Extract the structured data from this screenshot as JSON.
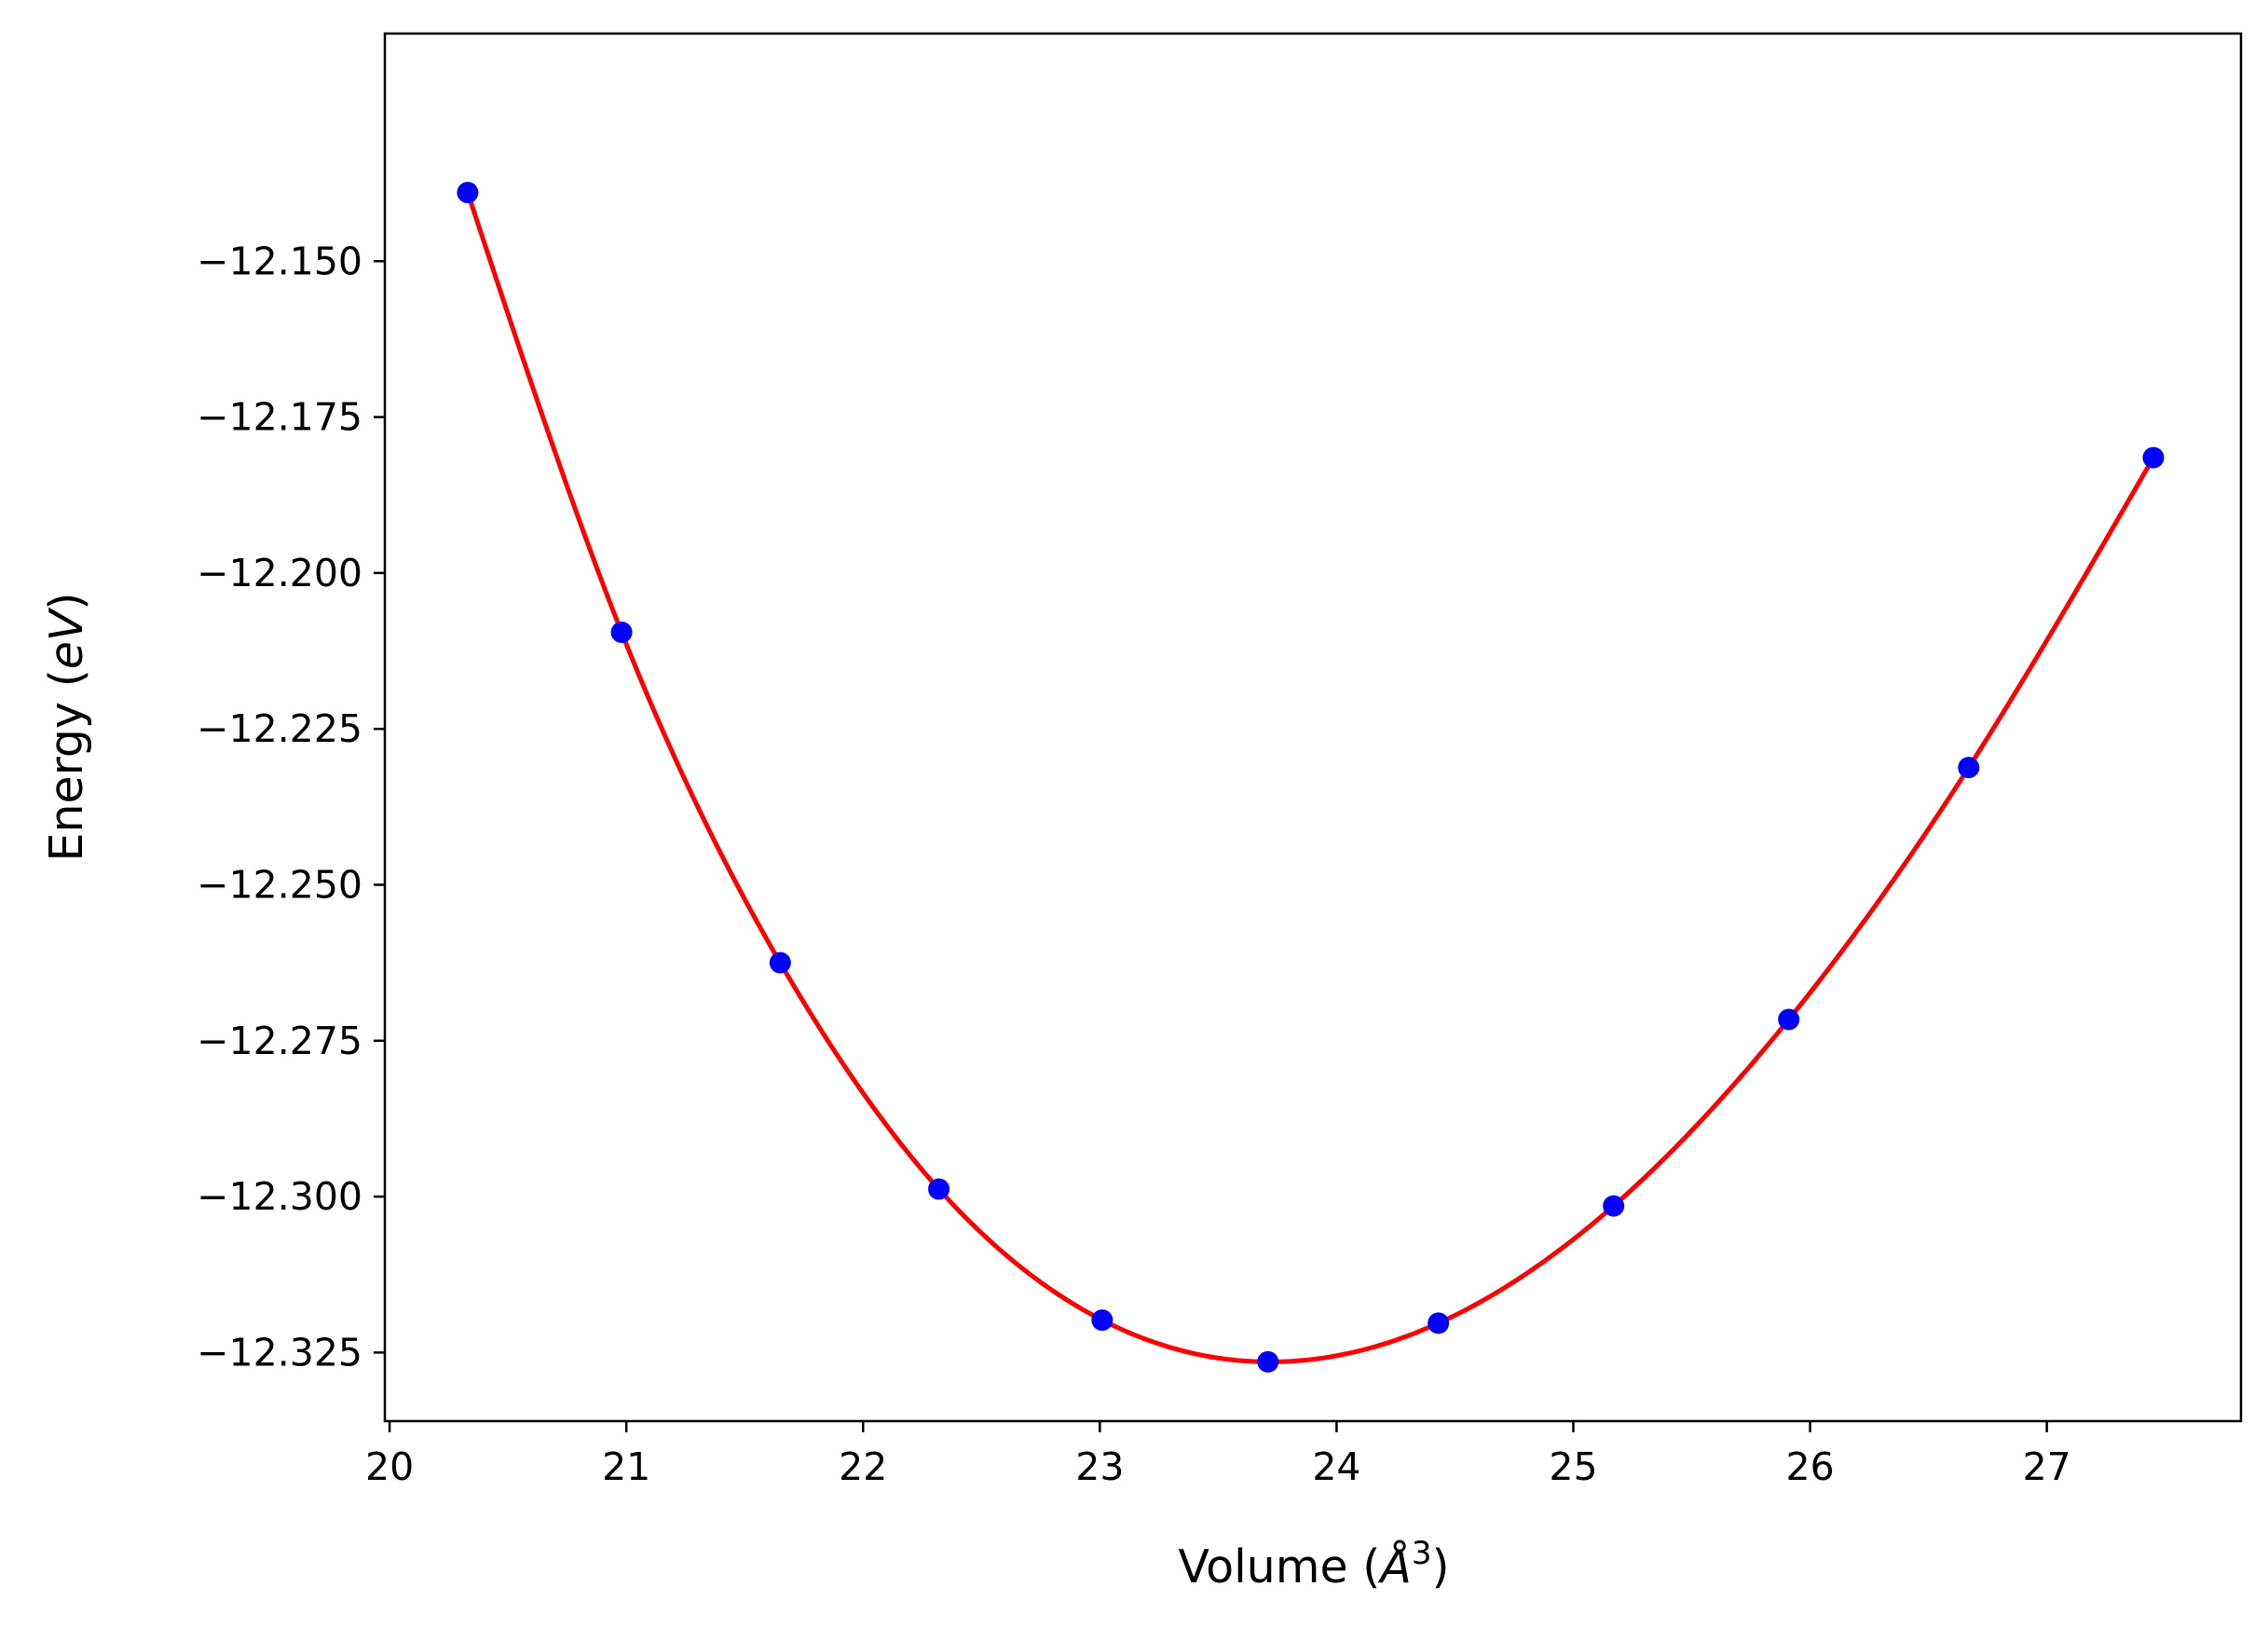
{
  "chart_data": {
    "type": "scatter",
    "title": "",
    "xlabel": {
      "prefix": "Volume (",
      "symbol": "Å",
      "exponent": "3",
      "suffix": ")"
    },
    "ylabel": {
      "prefix": "Energy (",
      "unit": "eV",
      "suffix": ")"
    },
    "xlim": [
      19.98,
      27.82
    ],
    "ylim": [
      -12.336,
      -12.1135
    ],
    "xticks": [
      20,
      21,
      22,
      23,
      24,
      25,
      26,
      27
    ],
    "xtick_labels": [
      "20",
      "21",
      "22",
      "23",
      "24",
      "25",
      "26",
      "27"
    ],
    "yticks": [
      -12.15,
      -12.175,
      -12.2,
      -12.225,
      -12.25,
      -12.275,
      -12.3,
      -12.325
    ],
    "ytick_labels": [
      "−12.150",
      "−12.175",
      "−12.200",
      "−12.225",
      "−12.250",
      "−12.275",
      "−12.300",
      "−12.325"
    ],
    "grid": false,
    "legend": "none",
    "series": [
      {
        "type": "scatter",
        "color": "#0000ff",
        "marker": "circle",
        "x": [
          20.33,
          20.98,
          21.65,
          22.32,
          23.01,
          23.71,
          24.43,
          25.17,
          25.91,
          26.67,
          27.45
        ],
        "y": [
          -12.139,
          -12.2095,
          -12.2625,
          -12.2988,
          -12.3198,
          -12.3265,
          -12.3203,
          -12.3015,
          -12.2716,
          -12.2312,
          -12.1815
        ]
      },
      {
        "type": "line",
        "color": "#ff0000",
        "fit": "cubic-spline",
        "x_range": [
          20.33,
          27.45
        ]
      }
    ]
  }
}
